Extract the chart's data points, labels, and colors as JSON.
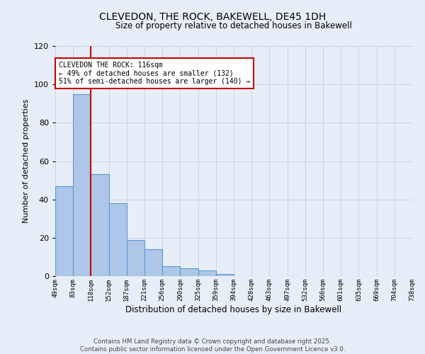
{
  "title_line1": "CLEVEDON, THE ROCK, BAKEWELL, DE45 1DH",
  "title_line2": "Size of property relative to detached houses in Bakewell",
  "xlabel": "Distribution of detached houses by size in Bakewell",
  "ylabel": "Number of detached properties",
  "bar_values": [
    47,
    95,
    53,
    38,
    19,
    14,
    5,
    4,
    3,
    1,
    0,
    0,
    0,
    0,
    0,
    0,
    0,
    0,
    0,
    0
  ],
  "bin_labels": [
    "49sqm",
    "83sqm",
    "118sqm",
    "152sqm",
    "187sqm",
    "221sqm",
    "256sqm",
    "290sqm",
    "325sqm",
    "359sqm",
    "394sqm",
    "428sqm",
    "463sqm",
    "497sqm",
    "532sqm",
    "566sqm",
    "601sqm",
    "635sqm",
    "669sqm",
    "704sqm",
    "738sqm"
  ],
  "bar_color": "#aec6e8",
  "bar_edge_color": "#5b9bd5",
  "grid_color": "#c8d4e8",
  "background_color": "#e8eef8",
  "vline_x": 2,
  "vline_color": "#cc0000",
  "annotation_text": "CLEVEDON THE ROCK: 116sqm\n← 49% of detached houses are smaller (132)\n51% of semi-detached houses are larger (140) →",
  "annotation_box_color": "#ffffff",
  "annotation_box_edge": "#cc0000",
  "ylim": [
    0,
    120
  ],
  "yticks": [
    0,
    20,
    40,
    60,
    80,
    100,
    120
  ],
  "footer_text": "Contains HM Land Registry data © Crown copyright and database right 2025.\nContains public sector information licensed under the Open Government Licence v3.0.",
  "num_bins": 20
}
